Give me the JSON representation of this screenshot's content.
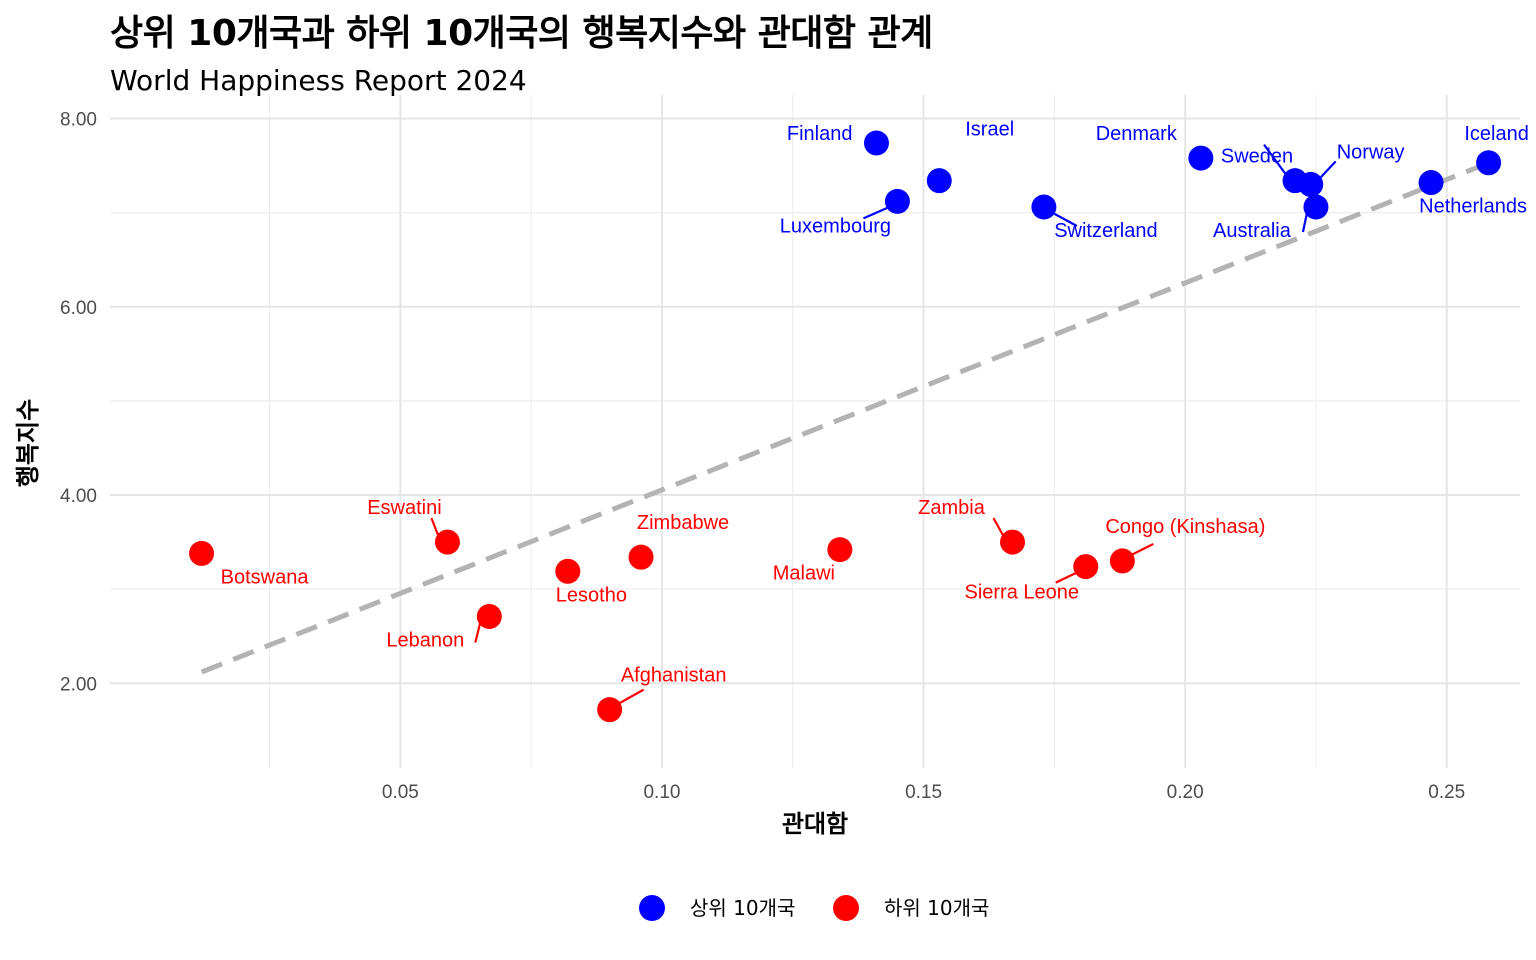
{
  "chart_data": {
    "type": "scatter",
    "title": "상위 10개국과 하위 10개국의 행복지수와 관대함 관계",
    "subtitle": "World Happiness Report 2024",
    "xlabel": "관대함",
    "ylabel": "행복지수",
    "xlim": [
      0.0,
      0.27
    ],
    "ylim": [
      1.5,
      8.0
    ],
    "x_ticks": [
      0.05,
      0.1,
      0.15,
      0.2,
      0.25
    ],
    "x_tick_labels": [
      "0.05",
      "0.10",
      "0.15",
      "0.20",
      "0.25"
    ],
    "y_ticks": [
      2,
      4,
      6,
      8
    ],
    "y_tick_labels": [
      "2.00",
      "4.00",
      "6.00",
      "8.00"
    ],
    "grid": true,
    "legend_position": "bottom",
    "colors": {
      "top": "#0000ff",
      "bottom": "#ff0000",
      "trend": "#b3b3b3"
    },
    "trend_line": {
      "x": [
        0.012,
        0.259
      ],
      "y": [
        2.12,
        7.55
      ]
    },
    "series": [
      {
        "name": "상위 10개국",
        "color": "#0000ff",
        "points": [
          {
            "label": "Finland",
            "x": 0.141,
            "y": 7.74
          },
          {
            "label": "Denmark",
            "x": 0.203,
            "y": 7.58
          },
          {
            "label": "Iceland",
            "x": 0.258,
            "y": 7.53
          },
          {
            "label": "Sweden",
            "x": 0.221,
            "y": 7.34
          },
          {
            "label": "Israel",
            "x": 0.153,
            "y": 7.34
          },
          {
            "label": "Netherlands",
            "x": 0.247,
            "y": 7.32
          },
          {
            "label": "Norway",
            "x": 0.224,
            "y": 7.3
          },
          {
            "label": "Luxembourg",
            "x": 0.145,
            "y": 7.12
          },
          {
            "label": "Switzerland",
            "x": 0.173,
            "y": 7.06
          },
          {
            "label": "Australia",
            "x": 0.225,
            "y": 7.06
          }
        ]
      },
      {
        "name": "하위 10개국",
        "color": "#ff0000",
        "points": [
          {
            "label": "Eswatini",
            "x": 0.059,
            "y": 3.5
          },
          {
            "label": "Zambia",
            "x": 0.167,
            "y": 3.5
          },
          {
            "label": "Malawi",
            "x": 0.134,
            "y": 3.42
          },
          {
            "label": "Botswana",
            "x": 0.012,
            "y": 3.38
          },
          {
            "label": "Zimbabwe",
            "x": 0.096,
            "y": 3.34
          },
          {
            "label": "Congo (Kinshasa)",
            "x": 0.188,
            "y": 3.3
          },
          {
            "label": "Sierra Leone",
            "x": 0.181,
            "y": 3.24
          },
          {
            "label": "Lesotho",
            "x": 0.082,
            "y": 3.19
          },
          {
            "label": "Lebanon",
            "x": 0.067,
            "y": 2.71
          },
          {
            "label": "Afghanistan",
            "x": 0.09,
            "y": 1.72
          }
        ]
      }
    ]
  }
}
